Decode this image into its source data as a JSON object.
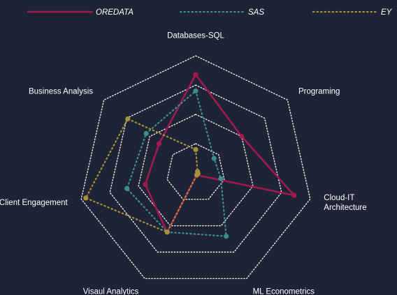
{
  "chart_data": {
    "type": "radar",
    "axes": [
      "Databases-SQL",
      "Programing",
      "Cloud-IT Architecture",
      "ML Econometrics",
      "Visaul Analytics",
      "Client Engagement",
      "Business Analysis"
    ],
    "axis_label_lines": [
      [
        "Databases-SQL"
      ],
      [
        "Programing"
      ],
      [
        "Cloud-IT",
        "Architecture"
      ],
      [
        "ML Econometrics"
      ],
      [
        "Visaul Analytics"
      ],
      [
        "Client Engagement"
      ],
      [
        "Business Analysis"
      ]
    ],
    "range": [
      0,
      5
    ],
    "rings": 4,
    "grid": true,
    "legend_position": "top",
    "series": [
      {
        "name": "OREDATA",
        "values": [
          4.2,
          2.5,
          4.3,
          0.1,
          2.8,
          2.2,
          2.0
        ],
        "color": "#a0194f",
        "line": "solid"
      },
      {
        "name": "SAS",
        "values": [
          3.5,
          1.0,
          1.1,
          3.0,
          2.8,
          3.0,
          2.7
        ],
        "color": "#3f8e8e",
        "line": "dotted"
      },
      {
        "name": "EY",
        "values": [
          1.0,
          0.1,
          0.1,
          0.1,
          2.8,
          4.8,
          3.7
        ],
        "color": "#a6913b",
        "line": "dotted"
      }
    ]
  }
}
